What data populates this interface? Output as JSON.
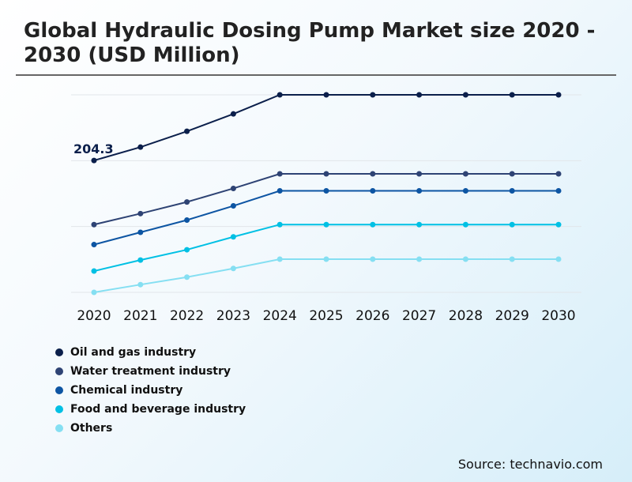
{
  "chart_data": {
    "type": "line",
    "title": "Global Hydraulic Dosing Pump Market size 2020 - 2030 (USD Million)",
    "x": [
      "2020",
      "2021",
      "2022",
      "2023",
      "2024",
      "2025",
      "2026",
      "2027",
      "2028",
      "2029",
      "2030"
    ],
    "ylim": [
      0,
      306
    ],
    "grid": true,
    "legend_position": "bottom-left",
    "annotations": [
      {
        "series": "Oil and gas industry",
        "x": "2020",
        "text": "204.3"
      }
    ],
    "series": [
      {
        "name": "Oil and gas industry",
        "color": "#0b1f4b",
        "values": [
          204.3,
          225,
          249.5,
          276.4,
          306,
          306,
          306,
          306,
          306,
          306,
          306
        ]
      },
      {
        "name": "Water treatment industry",
        "color": "#2e4374",
        "values": [
          105,
          122,
          140,
          161,
          183.6,
          183.6,
          183.6,
          183.6,
          183.6,
          183.6,
          183.6
        ]
      },
      {
        "name": "Chemical industry",
        "color": "#0d55a3",
        "values": [
          74,
          93,
          112,
          134,
          157.3,
          157.3,
          157.3,
          157.3,
          157.3,
          157.3,
          157.3
        ]
      },
      {
        "name": "Food and beverage industry",
        "color": "#00c0e4",
        "values": [
          33,
          50,
          66,
          86,
          105,
          105,
          105,
          105,
          105,
          105,
          105
        ]
      },
      {
        "name": "Others",
        "color": "#85dff2",
        "values": [
          0,
          12,
          23.6,
          37,
          51.4,
          51.4,
          51.4,
          51.4,
          51.4,
          51.4,
          51.4
        ]
      }
    ]
  },
  "source": "Source: technavio.com"
}
